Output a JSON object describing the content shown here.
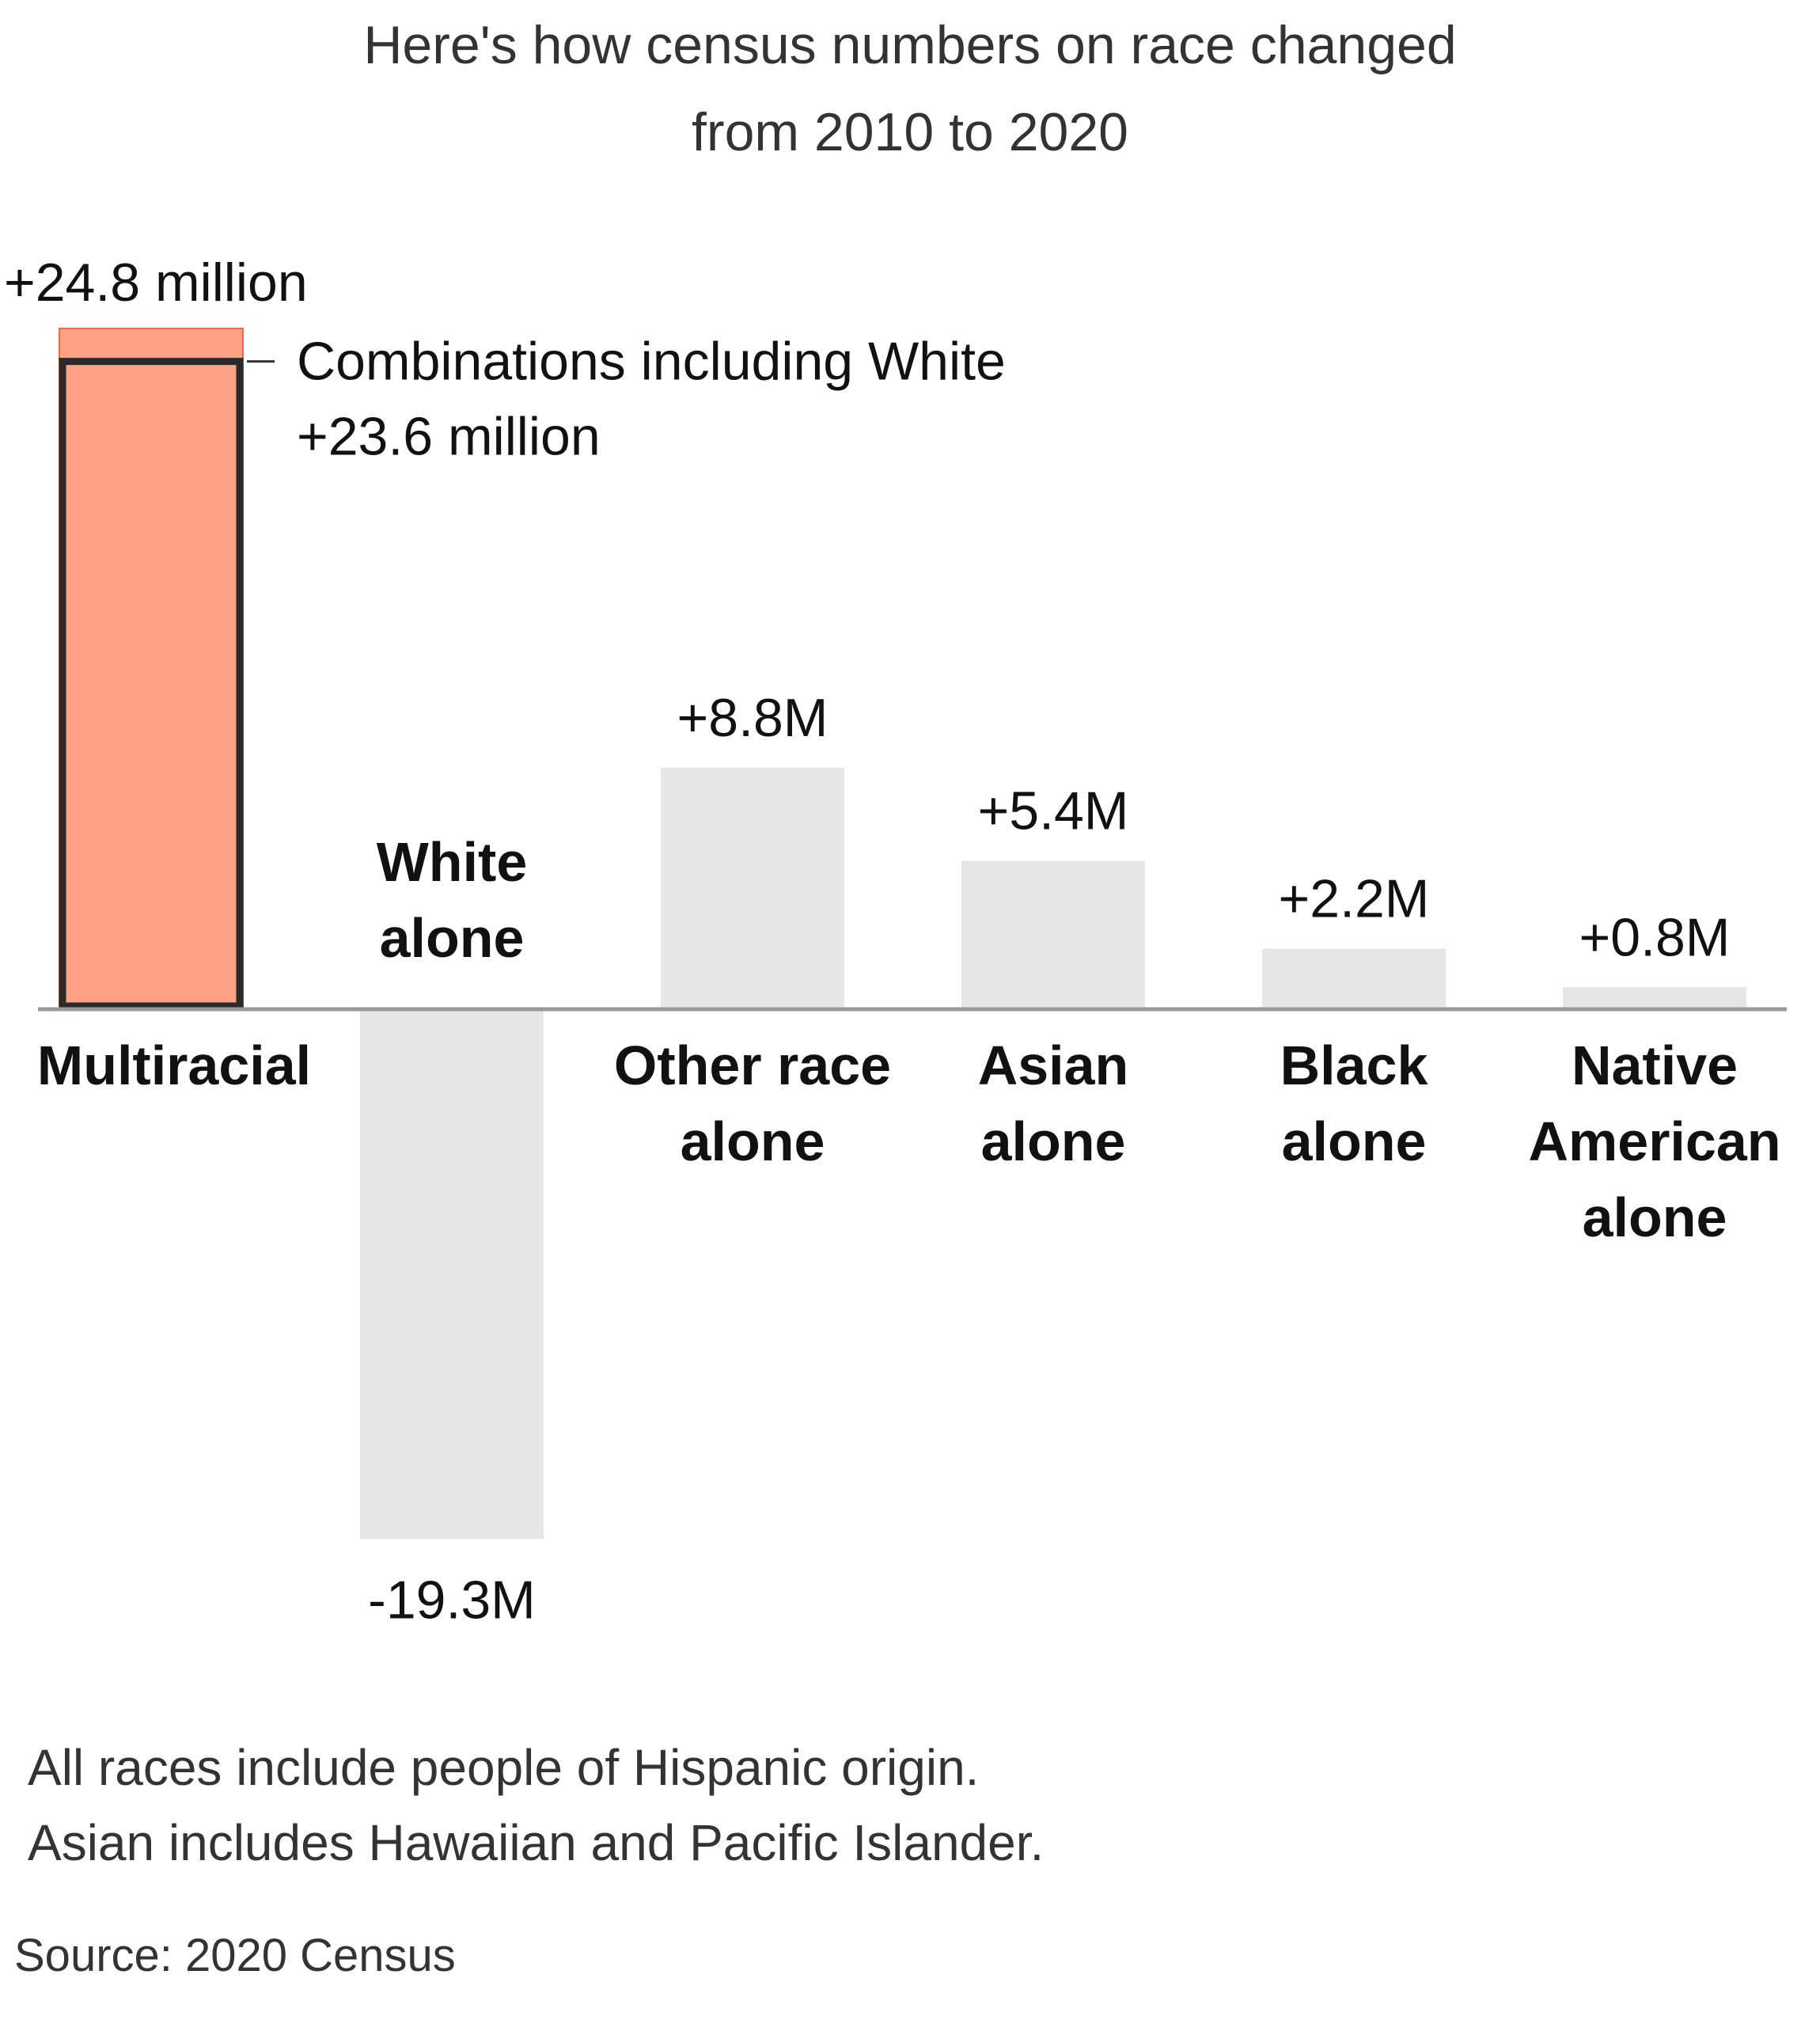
{
  "title_lines": [
    "Here's how census numbers on race changed",
    "from 2010 to 2020"
  ],
  "colors": {
    "highlight_fill": "#fea287",
    "highlight_edge": "#ef6a4c",
    "inner_outline": "#2a2a2a",
    "bar_gray": "#e6e6e8",
    "axis": "#999999"
  },
  "chart_data": {
    "type": "bar",
    "unit": "million",
    "categories": [
      [
        "Multiracial"
      ],
      [
        "White",
        "alone"
      ],
      [
        "Other race",
        "alone"
      ],
      [
        "Asian",
        "alone"
      ],
      [
        "Black",
        "alone"
      ],
      [
        "Native",
        "American",
        "alone"
      ]
    ],
    "values": [
      24.8,
      -19.3,
      8.8,
      5.4,
      2.2,
      0.8
    ],
    "value_labels": [
      "+24.8 million",
      "-19.3M",
      "+8.8M",
      "+5.4M",
      "+2.2M",
      "+0.8M"
    ],
    "highlight_index": 0,
    "sub_segment": {
      "category_index": 0,
      "value": 23.6,
      "label_lines": [
        "Combinations including White",
        "+23.6 million"
      ]
    },
    "ylim": [
      -19.3,
      24.8
    ],
    "grid": false
  },
  "notes": [
    "All races include people of Hispanic origin.",
    "Asian includes Hawaiian and Pacific Islander."
  ],
  "source": "Source: 2020 Census"
}
